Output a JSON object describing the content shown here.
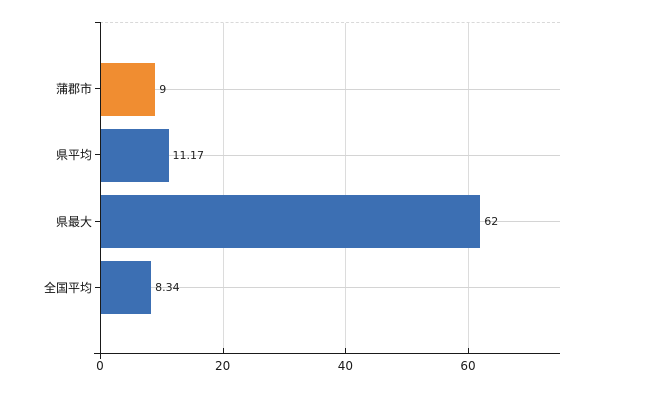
{
  "chart_data": {
    "type": "bar",
    "orientation": "horizontal",
    "title": "",
    "xlabel": "",
    "ylabel": "",
    "categories": [
      "蒲郡市",
      "県平均",
      "県最大",
      "全国平均"
    ],
    "values": [
      9,
      11.17,
      62,
      8.34
    ],
    "value_labels": [
      "9",
      "11.17",
      "62",
      "8.34"
    ],
    "bar_colors": [
      "#F08D31",
      "#3C6FB3",
      "#3C6FB3",
      "#3C6FB3"
    ],
    "x_ticks": [
      0,
      20,
      40,
      60
    ],
    "x_tick_labels": [
      "0",
      "20",
      "40",
      "60"
    ],
    "xlim": [
      0,
      75
    ],
    "grid": true,
    "legend": false,
    "colors": {
      "highlight_bar": "#F08D31",
      "default_bar": "#3C6FB3",
      "gridline": "#d4d4d4",
      "axis": "#1a1a1a",
      "background": "#ffffff"
    }
  }
}
